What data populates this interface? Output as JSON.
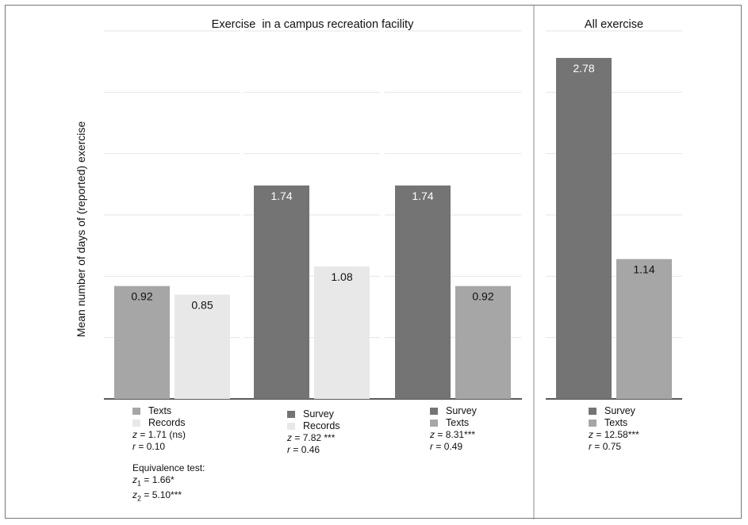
{
  "chart_data": {
    "type": "bar",
    "ylabel": "Mean number of days of (reported) exercise",
    "ylim": [
      0,
      3
    ],
    "grid": true,
    "headers": [
      {
        "title": "Exercise  in a campus recreation facility",
        "panels": [
          0,
          1,
          2
        ]
      },
      {
        "title": "All exercise",
        "panels": [
          3
        ]
      }
    ],
    "colors": {
      "Survey": "#747474",
      "Texts": "#a6a6a6",
      "Records": "#e8e8e8"
    },
    "panels": [
      {
        "bars": [
          {
            "series": "Texts",
            "value": 0.92,
            "label": "0.92"
          },
          {
            "series": "Records",
            "value": 0.85,
            "label": "0.85"
          }
        ],
        "legend": [
          "Texts",
          "Records"
        ],
        "stats": {
          "z": "1.71 (ns)",
          "r": "0.10"
        },
        "equivalence": {
          "title": "Equivalence test:",
          "z1": "1.66*",
          "z2": "5.10***"
        }
      },
      {
        "bars": [
          {
            "series": "Survey",
            "value": 1.74,
            "label": "1.74"
          },
          {
            "series": "Records",
            "value": 1.08,
            "label": "1.08"
          }
        ],
        "legend": [
          "Survey",
          "Records"
        ],
        "stats": {
          "z": "7.82 ***",
          "r": "0.46"
        }
      },
      {
        "bars": [
          {
            "series": "Survey",
            "value": 1.74,
            "label": "1.74"
          },
          {
            "series": "Texts",
            "value": 0.92,
            "label": "0.92"
          }
        ],
        "legend": [
          "Survey",
          "Texts"
        ],
        "stats": {
          "z": "8.31***",
          "r": "0.49"
        }
      },
      {
        "bars": [
          {
            "series": "Survey",
            "value": 2.78,
            "label": "2.78"
          },
          {
            "series": "Texts",
            "value": 1.14,
            "label": "1.14"
          }
        ],
        "legend": [
          "Survey",
          "Texts"
        ],
        "stats": {
          "z": "12.58***",
          "r": "0.75"
        }
      }
    ]
  }
}
